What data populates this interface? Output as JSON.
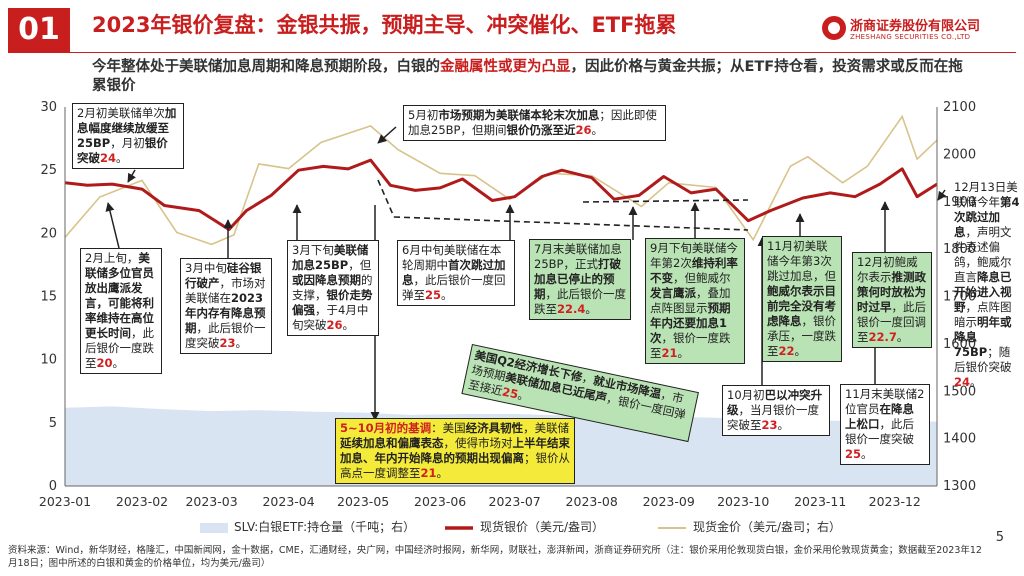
{
  "header": {
    "badge": "01",
    "title": "2023年银价复盘：金银共振，预期主导、冲突催化、ETF拖累",
    "subtitle_part1": "今年整体处于美联储加息周期和降息预期阶段，白银的",
    "subtitle_highlight": "金融属性或更为凸显",
    "subtitle_part2": "，因此价格与黄金共振；从ETF持仓看，投资需求或反而在拖累银价"
  },
  "logo": {
    "cn": "浙商证券股份有限公司",
    "en": "ZHESHANG SECURITIES CO.,LTD"
  },
  "colors": {
    "accent": "#c81e1e",
    "silver_line": "#b01a1a",
    "gold_line": "#d8c38a",
    "etf_area": "#d9e4f2"
  },
  "chart_data": {
    "type": "line",
    "x_ticks": [
      "2023-01",
      "2023-02",
      "2023-03",
      "2023-04",
      "2023-05",
      "2023-06",
      "2023-07",
      "2023-08",
      "2023-09",
      "2023-10",
      "2023-11",
      "2023-12"
    ],
    "x_range": [
      "2023-01-01",
      "2023-12-18"
    ],
    "ylim_left": [
      0,
      30
    ],
    "yticks_left": [
      "0",
      "5",
      "10",
      "15",
      "20",
      "25",
      "30"
    ],
    "ylim_right": [
      1300,
      2100
    ],
    "yticks_right": [
      "1300",
      "1400",
      "1500",
      "1600",
      "1700",
      "1800",
      "1900",
      "2000",
      "2100"
    ],
    "series": [
      {
        "name": "SLV:白银ETF:持仓量（千吨；右）",
        "axis": "right",
        "style": "area",
        "x": [
          "2023-01-01",
          "2023-01-20",
          "2023-02-10",
          "2023-03-01",
          "2023-03-20",
          "2023-04-10",
          "2023-05-01",
          "2023-05-20",
          "2023-06-10",
          "2023-07-01",
          "2023-07-20",
          "2023-08-10",
          "2023-09-01",
          "2023-09-20",
          "2023-10-10",
          "2023-11-01",
          "2023-11-20",
          "2023-12-01",
          "2023-12-18"
        ],
        "values": [
          1465,
          1468,
          1462,
          1458,
          1460,
          1457,
          1455,
          1450,
          1452,
          1452,
          1449,
          1448,
          1446,
          1444,
          1440,
          1438,
          1437,
          1436,
          1436
        ]
      },
      {
        "name": "现货银价（美元/盎司）",
        "axis": "left",
        "style": "line",
        "x": [
          "2023-01-01",
          "2023-01-10",
          "2023-01-20",
          "2023-02-01",
          "2023-02-10",
          "2023-02-24",
          "2023-03-08",
          "2023-03-15",
          "2023-03-25",
          "2023-04-05",
          "2023-04-15",
          "2023-04-25",
          "2023-05-04",
          "2023-05-12",
          "2023-05-22",
          "2023-06-01",
          "2023-06-10",
          "2023-06-22",
          "2023-07-01",
          "2023-07-12",
          "2023-07-20",
          "2023-08-01",
          "2023-08-10",
          "2023-08-20",
          "2023-08-30",
          "2023-09-10",
          "2023-09-20",
          "2023-10-03",
          "2023-10-12",
          "2023-10-25",
          "2023-11-05",
          "2023-11-15",
          "2023-11-25",
          "2023-12-04",
          "2023-12-10",
          "2023-12-18"
        ],
        "values": [
          24,
          23.8,
          23.9,
          23.5,
          22.2,
          21.8,
          20.3,
          21.8,
          23.0,
          25.0,
          25.3,
          25.1,
          25.8,
          23.8,
          23.4,
          23.6,
          24.3,
          22.6,
          22.9,
          24.5,
          25.0,
          24.4,
          22.7,
          23.0,
          24.5,
          23.2,
          23.5,
          21.0,
          21.8,
          22.8,
          23.2,
          22.9,
          23.9,
          25.1,
          22.9,
          23.9
        ]
      },
      {
        "name": "现货金价（美元/盎司；右）",
        "axis": "right",
        "style": "line",
        "x": [
          "2023-01-01",
          "2023-01-15",
          "2023-02-01",
          "2023-02-15",
          "2023-03-01",
          "2023-03-10",
          "2023-03-20",
          "2023-04-01",
          "2023-04-14",
          "2023-05-04",
          "2023-05-15",
          "2023-06-01",
          "2023-06-15",
          "2023-06-29",
          "2023-07-15",
          "2023-08-01",
          "2023-08-21",
          "2023-09-01",
          "2023-09-20",
          "2023-10-05",
          "2023-10-20",
          "2023-10-27",
          "2023-11-10",
          "2023-11-20",
          "2023-12-04",
          "2023-12-10",
          "2023-12-18"
        ],
        "values": [
          1825,
          1910,
          1945,
          1835,
          1810,
          1830,
          1980,
          1970,
          2025,
          2060,
          2010,
          1960,
          1955,
          1905,
          1960,
          1955,
          1890,
          1940,
          1930,
          1820,
          1975,
          1995,
          1940,
          1975,
          2080,
          1990,
          2030
        ]
      }
    ],
    "annotations": [
      "2月初美联储单次加息幅度继续放缓至25BP，月初银价突破24。",
      "5月初市场预期为美联储本轮末次加息；因此即使加息25BP，但期间银价仍涨至近26。",
      "2月上旬，美联储多位官员放出鹰派发言，可能将利率维持在高位更长时间，此后银价一度跌至20。",
      "3月中旬硅谷银行破产，市场对美联储在2023年内存有降息预期，此后银价一度突破23。",
      "3月下旬美联储加息25BP，但或因降息预期的支撑，银价走势偏强，于4月中旬突破26。",
      "6月中旬美联储在本轮周期中首次跳过加息，此后银价一度回弹至25。",
      "7月末美联储加息25BP，正式打破加息已停止的预期，此后银价一度跌至22.4。",
      "9月下旬美联储今年第2次维持利率不变，但鲍威尔发言鹰派，叠加点阵图显示预期年内还要加息1次，银价一度跌至21。",
      "11月初美联储今年第3次跳过加息，但鲍威尔表示目前完全没有考虑降息，银价承压，一度跌至22。",
      "12月初鲍威尔表示推测政策何时放松为时过早，此后银价一度回调至22.7。",
      "12月13日美联储今年第4次跳过加息，声明文件表述偏鸽，鲍威尔直言降息已开始进入视野，点阵图暗示明年或降息75BP；随后银价突破24。",
      "美国Q2经济增长下修，就业市场降温，市场预期美联储加息已近尾声，银价一度回弹至接近25。",
      "10月初巴以冲突升级，当月银价一度突破至23。",
      "11月末美联储2位官员在降息上松口，此后银价一度突破25。",
      "5~10月初的基调：美国经济具韧性，美联储延续加息和偏鹰表态，使得市场对上半年结束加息、年内开始降息的预期出现偏离；银价从高点一度调整至21。"
    ]
  },
  "ann": {
    "a1": {
      "t1": "2月初美联储单次",
      "t2": "加息幅度继续放",
      "t3": "缓至25BP",
      "t4": "，月初",
      "t5": "银价突破",
      "t6": "24",
      "t7": "。"
    },
    "a2": {
      "t1": "5月初",
      "t2": "市场预期为美联储本轮末次加息",
      "t3": "；因此即使加息25BP，但期间",
      "t4": "银价仍涨至近",
      "t5": "26",
      "t6": "。"
    },
    "a3": {
      "t1": "2月上旬，",
      "t2": "美联储多位官员放出鹰派发言，可能将利率维持在高位更长时间",
      "t3": "，此后银价一度跌至",
      "t4": "20",
      "t5": "。"
    },
    "a4": {
      "t1": "3月中旬",
      "t2": "硅谷银行破产",
      "t3": "，市场对美联储在",
      "t4": "2023年内存有降息预期",
      "t5": "，此后银价一度突破",
      "t6": "23",
      "t7": "。"
    },
    "a5": {
      "t1": "3月下旬",
      "t2": "美联储加息25BP",
      "t3": "，但",
      "t4": "或因降息预期",
      "t5": "的支撑，",
      "t6": "银价走势偏强",
      "t7": "，于4月中旬突破",
      "t8": "26",
      "t9": "。"
    },
    "a6": {
      "t1": "6月中旬美联储在本轮周期中",
      "t2": "首次跳过加息",
      "t3": "，此后银价一度回弹至",
      "t4": "25",
      "t5": "。"
    },
    "a7": {
      "t1": "7月末美联储加息25BP，正式",
      "t2": "打破加息已停止的预期",
      "t3": "，此后银价一度跌至",
      "t4": "22.4",
      "t5": "。"
    },
    "a8": {
      "t1": "9月下旬美联储今年第2次",
      "t2": "维持利率不变",
      "t3": "，但鲍威尔",
      "t4": "发言鹰派",
      "t5": "，叠加点阵图显示",
      "t6": "预期年内还要加息1次",
      "t7": "，银价一度跌至",
      "t8": "21",
      "t9": "。"
    },
    "a9": {
      "t1": "11月初美联储今年第3次跳过加息，但",
      "t2": "鲍威尔表示目前完全没有考虑降息",
      "t3": "，银价承压，一度跌至",
      "t4": "22",
      "t5": "。"
    },
    "a10": {
      "t1": "12月初鲍威尔表示",
      "t2": "推测政策何时放松为时过早",
      "t3": "，此后银价一度回调至",
      "t4": "22.7",
      "t5": "。"
    },
    "a11": {
      "t1": "12月13日美联储今年",
      "t2": "第4次跳过加息",
      "t3": "，声明文件表述偏鸽，鲍威尔直言",
      "t4": "降息已开始进入视野",
      "t5": "，点阵图暗示",
      "t6": "明年或降息75BP",
      "t7": "；随后银价突破",
      "t8": "24",
      "t9": "。"
    },
    "a12": {
      "t1": "美国Q2经济增长下修",
      "t2": "，",
      "t3": "就业市场降温",
      "t4": "，市场预期",
      "t5": "美联储加息已近尾声",
      "t6": "，银价一度回弹至接近",
      "t7": "25",
      "t8": "。"
    },
    "a13": {
      "t1": "10月初",
      "t2": "巴以冲突升级",
      "t3": "，当月银价一度突破至",
      "t4": "23",
      "t5": "。"
    },
    "a14": {
      "t1": "11月末美联储2位官员",
      "t2": "在降息上松口",
      "t3": "，此后银价一度突破",
      "t4": "25",
      "t5": "。"
    },
    "a15": {
      "t1": "5~10月初的基调",
      "t2": "：美国",
      "t3": "经济具韧性",
      "t4": "，美联储",
      "t5": "延续加息和偏鹰表态",
      "t6": "，使得市场对",
      "t7": "上半年结束加息、年内开始降息的预期出现偏离",
      "t8": "；银价从高点一度调整至",
      "t9": "21",
      "t10": "。"
    }
  },
  "legend": {
    "etf": "SLV:白银ETF:持仓量（千吨；右）",
    "silver": "现货银价（美元/盎司）",
    "gold": "现货金价（美元/盎司；右）"
  },
  "source": "资料来源：Wind，新华财经，格隆汇，中国新闻网，金十数据，CME，汇通财经，央广网，中国经济时报网，新华网，财联社，澎湃新闻，浙商证券研究所（注：银价采用伦敦现货白银，金价采用伦敦现货黄金；数据截至2023年12月18日；图中所述的白银和黄金的价格单位，均为美元/盎司）",
  "page_number": "5"
}
